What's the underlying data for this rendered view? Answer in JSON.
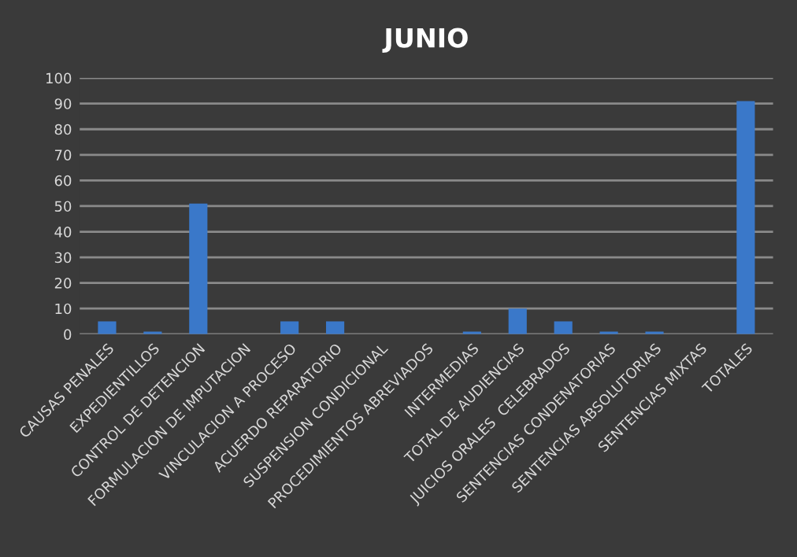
{
  "chart_data": {
    "type": "bar",
    "title": "JUNIO",
    "categories": [
      "CAUSAS PENALES",
      "EXPEDIENTILLOS",
      "CONTROL DE DETENCION",
      "FORMULACION DE IMPUTACION",
      "VINCULACION A PROCESO",
      "ACUERDO REPARATORIO",
      "SUSPENSION CONDICIONAL",
      "PROCEDIMIENTOS ABREVIADOS",
      "INTERMEDIAS",
      "TOTAL DE AUDIENCIAS",
      "JUICIOS ORALES  CELEBRADOS",
      "SENTENCIAS CONDENATORIAS",
      "SENTENCIAS ABSOLUTORIAS",
      "SENTENCIAS MIXTAS",
      "TOTALES"
    ],
    "values": [
      5,
      1,
      51,
      0,
      5,
      5,
      0,
      0,
      1,
      10,
      5,
      1,
      1,
      0,
      91
    ],
    "color": "#3a78c9",
    "ylim": [
      0,
      100
    ],
    "yticks": [
      0,
      10,
      20,
      30,
      40,
      50,
      60,
      70,
      80,
      90,
      100
    ],
    "grid": "y"
  }
}
